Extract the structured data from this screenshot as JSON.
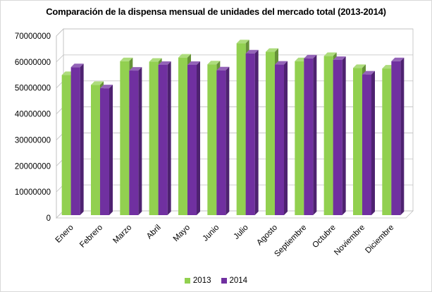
{
  "chart_data": {
    "type": "bar",
    "title": "Comparación de la dispensa mensual de unidades del mercado total (2013-2014)",
    "categories": [
      "Enero",
      "Febrero",
      "Marzo",
      "Abril",
      "Mayo",
      "Junio",
      "Julio",
      "Agosto",
      "Septiembre",
      "Octubre",
      "Noviembre",
      "Diciembre"
    ],
    "series": [
      {
        "name": "2013",
        "color": "#92d050",
        "values": [
          53900000,
          50100000,
          59200000,
          59000000,
          60600000,
          58000000,
          66100000,
          62800000,
          59200000,
          61200000,
          56600000,
          56400000
        ]
      },
      {
        "name": "2014",
        "color": "#7030a0",
        "values": [
          56900000,
          48800000,
          55600000,
          57800000,
          57800000,
          55700000,
          62200000,
          57900000,
          60300000,
          59700000,
          54100000,
          59200000
        ]
      }
    ],
    "yticks": [
      "0",
      "10000000",
      "20000000",
      "30000000",
      "40000000",
      "50000000",
      "60000000",
      "70000000"
    ],
    "ylim": [
      0,
      70000000
    ],
    "grid": true,
    "legend_position": "bottom",
    "style": "3d-clustered-column"
  }
}
